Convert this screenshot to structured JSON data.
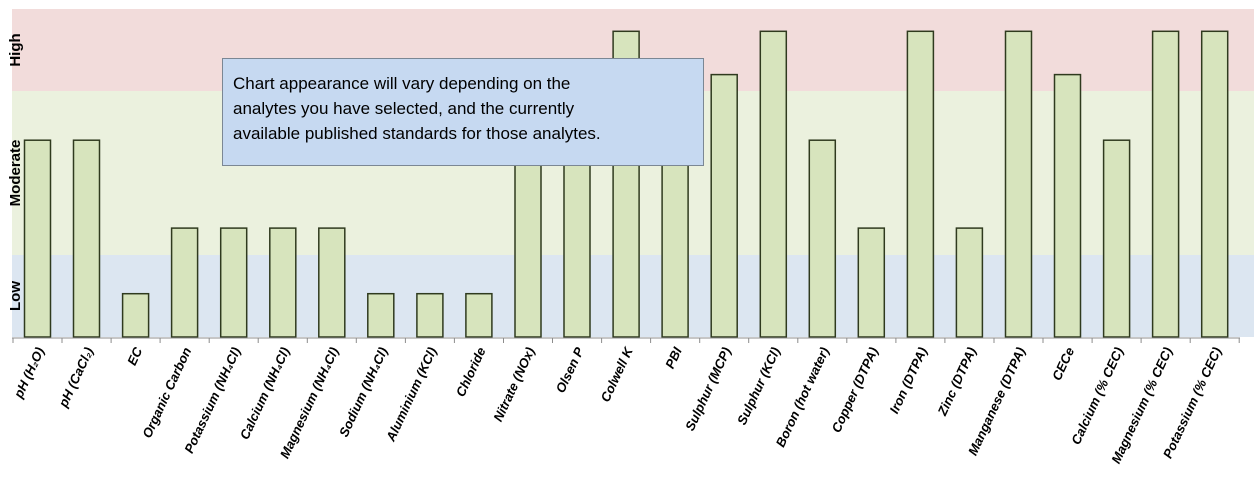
{
  "chart_data": {
    "type": "bar",
    "title": "",
    "xlabel": "",
    "ylabel": "",
    "ylim": [
      0,
      5
    ],
    "bands": [
      {
        "name": "Low",
        "from": 0,
        "to": 1.25,
        "color": "#dce6f1"
      },
      {
        "name": "Moderate",
        "from": 1.25,
        "to": 3.75,
        "color": "#ebf1de"
      },
      {
        "name": "High",
        "from": 3.75,
        "to": 5,
        "color": "#f2dcdb"
      }
    ],
    "bar_color": "#d7e4bd",
    "bar_edge_color": "#2f3a1e",
    "grid": false,
    "legend": "none",
    "categories": [
      "pH (H₂O)",
      "pH (CaCl₂)",
      "EC",
      "Organic Carbon",
      "Potassium (NH₄Cl)",
      "Calcium (NH₄Cl)",
      "Magnesium (NH₄Cl)",
      "Sodium (NH₄Cl)",
      "Aluminium (KCl)",
      "Chloride",
      "Nitrate (NOx)",
      "Olsen P",
      "Colwell K",
      "PBI",
      "Sulphur (MCP)",
      "Sulphur (KCl)",
      "Boron (hot water)",
      "Copper (DTPA)",
      "Iron (DTPA)",
      "Zinc (DTPA)",
      "Manganese (DTPA)",
      "CECe",
      "Calcium (% CEC)",
      "Magnesium (% CEC)",
      "Potassium (% CEC)"
    ],
    "values": [
      3,
      3,
      0.66,
      1.66,
      1.66,
      1.66,
      1.66,
      0.66,
      0.66,
      0.66,
      3,
      3,
      4.66,
      3,
      4,
      4.66,
      3,
      1.66,
      4.66,
      1.66,
      4.66,
      4,
      3,
      4.66,
      4.66
    ]
  },
  "annotation": {
    "lines": [
      "Chart appearance will vary depending on the",
      "analytes you have selected, and the currently",
      "available published standards for those analytes."
    ]
  }
}
